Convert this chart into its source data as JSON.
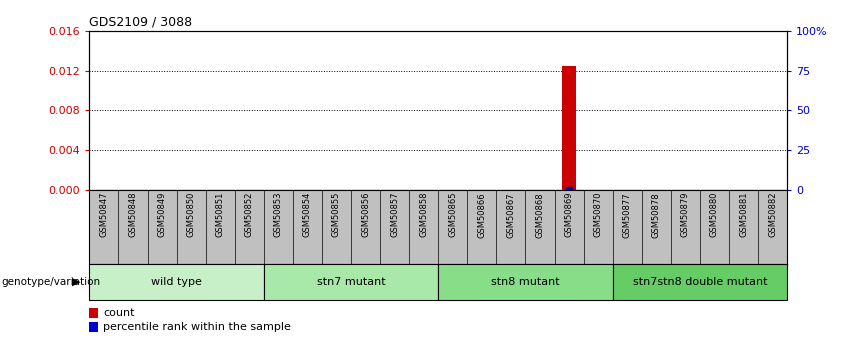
{
  "title": "GDS2109 / 3088",
  "samples": [
    "GSM50847",
    "GSM50848",
    "GSM50849",
    "GSM50850",
    "GSM50851",
    "GSM50852",
    "GSM50853",
    "GSM50854",
    "GSM50855",
    "GSM50856",
    "GSM50857",
    "GSM50858",
    "GSM50865",
    "GSM50866",
    "GSM50867",
    "GSM50868",
    "GSM50869",
    "GSM50870",
    "GSM50877",
    "GSM50878",
    "GSM50879",
    "GSM50880",
    "GSM50881",
    "GSM50882"
  ],
  "bar_values": [
    0,
    0,
    0,
    0,
    0,
    0,
    0,
    0,
    0,
    0,
    0,
    0,
    0,
    0,
    0,
    0,
    0.0125,
    0,
    0,
    0,
    0,
    0,
    0,
    0
  ],
  "percentile_bar_index": 16,
  "percentile_bar_value": 0,
  "groups": [
    {
      "label": "wild type",
      "start": 0,
      "end": 5,
      "color": "#c8f0c8"
    },
    {
      "label": "stn7 mutant",
      "start": 6,
      "end": 11,
      "color": "#a8e8a8"
    },
    {
      "label": "stn8 mutant",
      "start": 12,
      "end": 17,
      "color": "#88dd88"
    },
    {
      "label": "stn7stn8 double mutant",
      "start": 18,
      "end": 23,
      "color": "#66cc66"
    }
  ],
  "ylim_left": [
    0,
    0.016
  ],
  "ylim_right": [
    0,
    100
  ],
  "yticks_left": [
    0,
    0.004,
    0.008,
    0.012,
    0.016
  ],
  "ytick_labels_left": [
    "0",
    "0.004",
    "0.008",
    "0.012",
    "0.016"
  ],
  "yticks_right": [
    0,
    25,
    50,
    75,
    100
  ],
  "ytick_labels_right": [
    "0",
    "25",
    "50",
    "75",
    "100%"
  ],
  "bar_color": "#cc0000",
  "percentile_color": "#0000cc",
  "label_color_left": "#cc0000",
  "label_color_right": "#0000cc",
  "bar_width": 0.5,
  "legend_count_label": "count",
  "legend_pct_label": "percentile rank within the sample",
  "genotype_label": "genotype/variation",
  "sample_header_color": "#c0c0c0"
}
